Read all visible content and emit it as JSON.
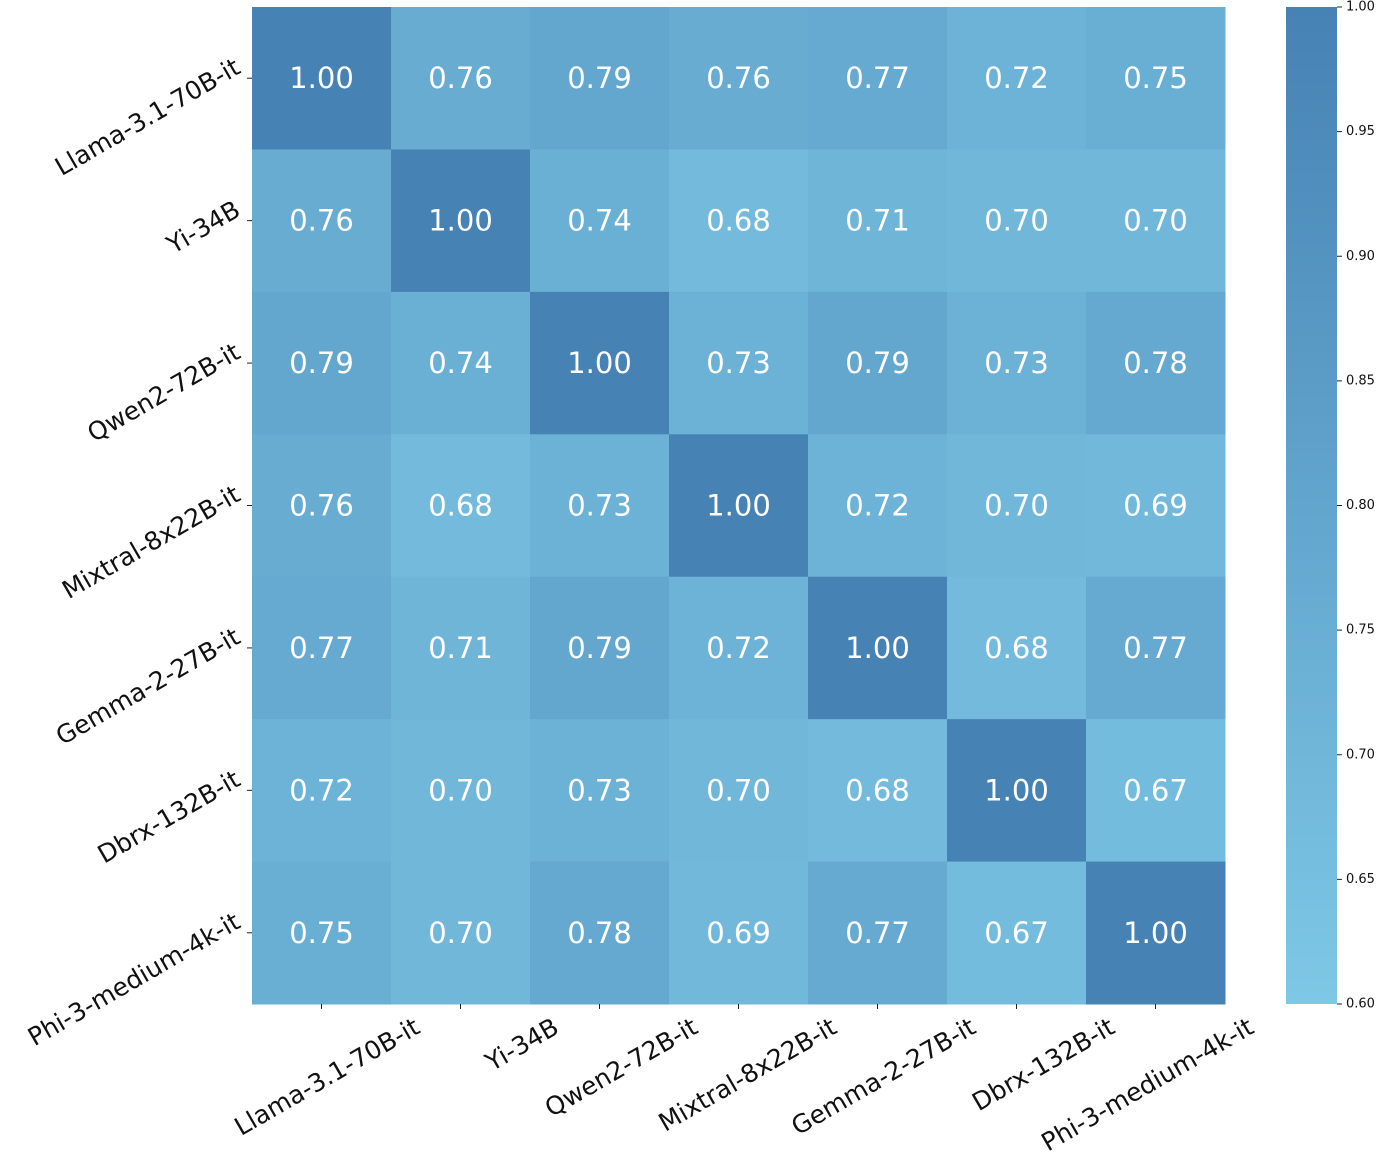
{
  "chart_data": {
    "type": "heatmap",
    "title": "",
    "xlabel": "",
    "ylabel": "",
    "row_labels": [
      "Llama-3.1-70B-it",
      "Yi-34B",
      "Qwen2-72B-it",
      "Mixtral-8x22B-it",
      "Gemma-2-27B-it",
      "Dbrx-132B-it",
      "Phi-3-medium-4k-it"
    ],
    "col_labels": [
      "Llama-3.1-70B-it",
      "Yi-34B",
      "Qwen2-72B-it",
      "Mixtral-8x22B-it",
      "Gemma-2-27B-it",
      "Dbrx-132B-it",
      "Phi-3-medium-4k-it"
    ],
    "values": [
      [
        1.0,
        0.76,
        0.79,
        0.76,
        0.77,
        0.72,
        0.75
      ],
      [
        0.76,
        1.0,
        0.74,
        0.68,
        0.71,
        0.7,
        0.7
      ],
      [
        0.79,
        0.74,
        1.0,
        0.73,
        0.79,
        0.73,
        0.78
      ],
      [
        0.76,
        0.68,
        0.73,
        1.0,
        0.72,
        0.7,
        0.69
      ],
      [
        0.77,
        0.71,
        0.79,
        0.72,
        1.0,
        0.68,
        0.77
      ],
      [
        0.72,
        0.7,
        0.73,
        0.7,
        0.68,
        1.0,
        0.67
      ],
      [
        0.75,
        0.7,
        0.78,
        0.69,
        0.77,
        0.67,
        1.0
      ]
    ],
    "value_format": "0.00",
    "colorbar": {
      "vmin": 0.6,
      "vmax": 1.0,
      "ticks": [
        "0.60",
        "0.65",
        "0.70",
        "0.75",
        "0.80",
        "0.85",
        "0.90",
        "0.95",
        "1.00"
      ],
      "color_min": "#7ec8e6",
      "color_max": "#4682b4"
    },
    "annotation_color": "#ffffff"
  }
}
